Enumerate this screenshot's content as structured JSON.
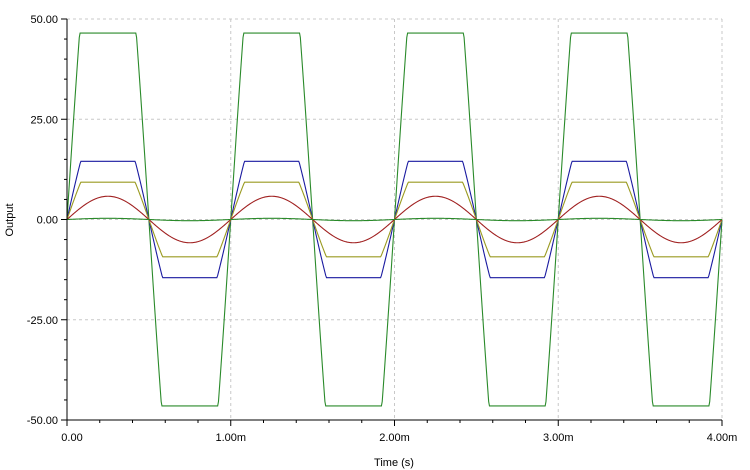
{
  "chart_data": {
    "type": "line",
    "title": "",
    "xlabel": "Time (s)",
    "ylabel": "Output",
    "xlim": [
      0,
      0.004
    ],
    "ylim": [
      -50,
      50
    ],
    "x_ticks": [
      0,
      0.001,
      0.002,
      0.003,
      0.004
    ],
    "x_tick_labels": [
      "0.00",
      "1.00m",
      "2.00m",
      "3.00m",
      "4.00m"
    ],
    "y_ticks": [
      50,
      25,
      0,
      -25,
      -50
    ],
    "y_tick_labels": [
      "50.00",
      "25.00",
      "0.00",
      "-25.00",
      "-50.00"
    ],
    "grid": true,
    "legend": "none",
    "period": 0.001,
    "series": [
      {
        "color": "#2a8a2a",
        "amplitude": 46.5,
        "shape": "clipped-sine",
        "unclipped_peak": 100
      },
      {
        "color": "#1a1aa0",
        "amplitude": 14.5,
        "shape": "clipped-sine",
        "unclipped_peak": 29
      },
      {
        "color": "#9a9a20",
        "amplitude": 9.3,
        "shape": "clipped-sine",
        "unclipped_peak": 18.5
      },
      {
        "color": "#a02020",
        "amplitude": 5.8,
        "shape": "sine",
        "unclipped_peak": 5.8
      },
      {
        "color": "#2a8a2a",
        "amplitude": 0.3,
        "shape": "sine",
        "unclipped_peak": 0.3
      }
    ]
  }
}
